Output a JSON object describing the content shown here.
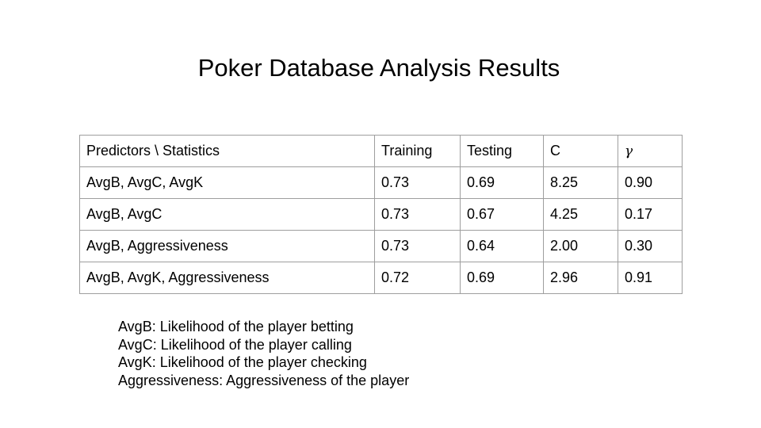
{
  "title": "Poker Database Analysis Results",
  "table": {
    "header": {
      "predictors": "Predictors \\ Statistics",
      "training": "Training",
      "testing": "Testing",
      "c": "C",
      "gamma": "γ"
    },
    "rows": [
      {
        "predictors": "AvgB, AvgC, AvgK",
        "training": "0.73",
        "testing": "0.69",
        "c": "8.25",
        "gamma": "0.90"
      },
      {
        "predictors": "AvgB, AvgC",
        "training": "0.73",
        "testing": "0.67",
        "c": "4.25",
        "gamma": "0.17"
      },
      {
        "predictors": "AvgB, Aggressiveness",
        "training": "0.73",
        "testing": "0.64",
        "c": "2.00",
        "gamma": "0.30"
      },
      {
        "predictors": "AvgB, AvgK, Aggressiveness",
        "training": "0.72",
        "testing": "0.69",
        "c": "2.96",
        "gamma": "0.91"
      }
    ]
  },
  "legend": [
    "AvgB: Likelihood of the player betting",
    "AvgC: Likelihood of the player calling",
    "AvgK: Likelihood of the player checking",
    "Aggressiveness: Aggressiveness of the player"
  ]
}
